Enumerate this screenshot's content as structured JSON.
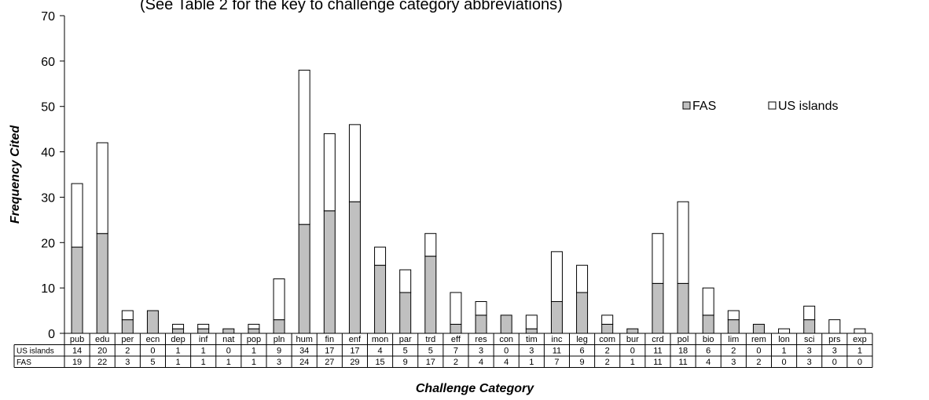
{
  "chart_data": {
    "type": "bar",
    "stacked": true,
    "subtitle": "(See Table 2 for the key to challenge category abbreviations)",
    "xlabel": "Challenge Category",
    "ylabel": "Frequency Cited",
    "ylim": [
      0,
      70
    ],
    "yticks": [
      0,
      10,
      20,
      30,
      40,
      50,
      60,
      70
    ],
    "grid": false,
    "legend_placement": "top-right",
    "categories": [
      "pub",
      "edu",
      "per",
      "ecn",
      "dep",
      "inf",
      "nat",
      "pop",
      "pln",
      "hum",
      "fin",
      "enf",
      "mon",
      "par",
      "trd",
      "eff",
      "res",
      "con",
      "tim",
      "inc",
      "leg",
      "com",
      "bur",
      "crd",
      "pol",
      "bio",
      "lim",
      "rem",
      "lon",
      "sci",
      "prs",
      "exp"
    ],
    "series": [
      {
        "name": "FAS",
        "color": "#c0c0c0",
        "values": [
          19,
          22,
          3,
          5,
          1,
          1,
          1,
          1,
          3,
          24,
          27,
          29,
          15,
          9,
          17,
          2,
          4,
          4,
          1,
          7,
          9,
          2,
          1,
          11,
          11,
          4,
          3,
          2,
          0,
          3,
          0,
          0
        ]
      },
      {
        "name": "US islands",
        "color": "#ffffff",
        "values": [
          14,
          20,
          2,
          0,
          1,
          1,
          0,
          1,
          9,
          34,
          17,
          17,
          4,
          5,
          5,
          7,
          3,
          0,
          3,
          11,
          6,
          2,
          0,
          11,
          18,
          6,
          2,
          0,
          1,
          3,
          3,
          1
        ]
      }
    ],
    "table_rows": [
      {
        "label": "US islands",
        "series_index": 1
      },
      {
        "label": "FAS",
        "series_index": 0
      }
    ]
  }
}
